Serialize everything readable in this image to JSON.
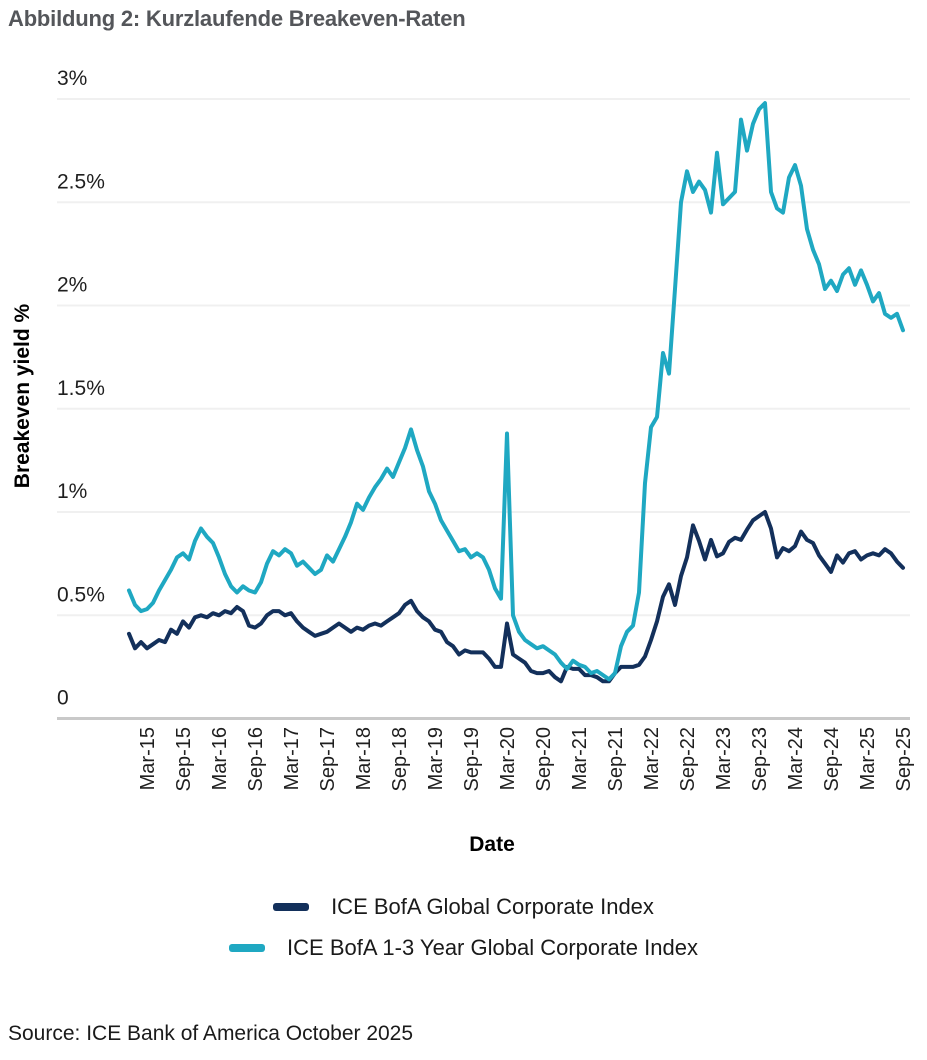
{
  "title": "Abbildung 2: Kurzlaufende Breakeven-Raten",
  "source": "Source: ICE Bank of America October 2025",
  "chart_data": {
    "type": "line",
    "title": "Abbildung 2: Kurzlaufende Breakeven-Raten",
    "xlabel": "Date",
    "ylabel": "Breakeven yield %",
    "ylim": [
      0,
      3
    ],
    "grid": "horizontal-only",
    "legend_position": "bottom",
    "x_start": "2014-12",
    "x_end": "2025-09",
    "x_frequency": "monthly",
    "ytick_labels": [
      "3%",
      "2.5%",
      "2%",
      "1.5%",
      "1%",
      "0.5%",
      "0"
    ],
    "ytick_values": [
      3,
      2.5,
      2,
      1.5,
      1,
      0.5,
      0
    ],
    "xtick_labels": [
      "Mar-15",
      "Sep-15",
      "Mar-16",
      "Sep-16",
      "Mar-17",
      "Sep-17",
      "Mar-18",
      "Sep-18",
      "Mar-19",
      "Sep-19",
      "Mar-20",
      "Sep-20",
      "Mar-21",
      "Sep-21",
      "Mar-22",
      "Sep-22",
      "Mar-23",
      "Sep-23",
      "Mar-24",
      "Sep-24",
      "Mar-25",
      "Sep-25"
    ],
    "colors": {
      "axis_line": "#c9c9c9",
      "gridline": "#f0f0f0",
      "tick_text": "#1f1f1f",
      "title_text": "#54565a"
    },
    "series": [
      {
        "name": "ICE BofA Global Corporate Index",
        "color": "#13305b",
        "values": [
          0.41,
          0.34,
          0.37,
          0.34,
          0.36,
          0.38,
          0.37,
          0.43,
          0.41,
          0.47,
          0.44,
          0.49,
          0.5,
          0.49,
          0.51,
          0.5,
          0.52,
          0.51,
          0.54,
          0.52,
          0.45,
          0.44,
          0.46,
          0.5,
          0.52,
          0.52,
          0.5,
          0.51,
          0.47,
          0.44,
          0.42,
          0.4,
          0.41,
          0.42,
          0.44,
          0.46,
          0.44,
          0.42,
          0.44,
          0.43,
          0.45,
          0.46,
          0.45,
          0.47,
          0.49,
          0.51,
          0.55,
          0.57,
          0.52,
          0.49,
          0.47,
          0.43,
          0.42,
          0.37,
          0.35,
          0.31,
          0.33,
          0.32,
          0.32,
          0.32,
          0.29,
          0.25,
          0.25,
          0.46,
          0.31,
          0.29,
          0.27,
          0.23,
          0.22,
          0.22,
          0.23,
          0.2,
          0.18,
          0.25,
          0.24,
          0.24,
          0.21,
          0.21,
          0.2,
          0.18,
          0.18,
          0.22,
          0.25,
          0.25,
          0.25,
          0.26,
          0.3,
          0.38,
          0.47,
          0.59,
          0.65,
          0.55,
          0.69,
          0.78,
          0.935,
          0.86,
          0.77,
          0.865,
          0.785,
          0.8,
          0.855,
          0.875,
          0.865,
          0.915,
          0.96,
          0.98,
          1.0,
          0.92,
          0.78,
          0.825,
          0.81,
          0.835,
          0.905,
          0.865,
          0.85,
          0.79,
          0.75,
          0.71,
          0.79,
          0.755,
          0.8,
          0.81,
          0.77,
          0.79,
          0.8,
          0.79,
          0.82,
          0.8,
          0.76,
          0.73
        ]
      },
      {
        "name": "ICE BofA 1-3 Year Global Corporate Index",
        "color": "#1fa8c2",
        "values": [
          0.62,
          0.55,
          0.52,
          0.53,
          0.56,
          0.62,
          0.67,
          0.72,
          0.78,
          0.8,
          0.77,
          0.86,
          0.92,
          0.88,
          0.85,
          0.78,
          0.7,
          0.64,
          0.61,
          0.64,
          0.62,
          0.61,
          0.66,
          0.75,
          0.81,
          0.79,
          0.82,
          0.8,
          0.74,
          0.76,
          0.73,
          0.7,
          0.72,
          0.79,
          0.76,
          0.82,
          0.88,
          0.95,
          1.04,
          1.01,
          1.07,
          1.12,
          1.16,
          1.21,
          1.17,
          1.24,
          1.31,
          1.4,
          1.3,
          1.22,
          1.1,
          1.04,
          0.96,
          0.91,
          0.86,
          0.81,
          0.82,
          0.78,
          0.8,
          0.78,
          0.72,
          0.63,
          0.58,
          1.38,
          0.5,
          0.42,
          0.38,
          0.36,
          0.34,
          0.35,
          0.33,
          0.31,
          0.27,
          0.24,
          0.28,
          0.26,
          0.25,
          0.22,
          0.23,
          0.21,
          0.19,
          0.22,
          0.35,
          0.42,
          0.45,
          0.61,
          1.14,
          1.41,
          1.46,
          1.77,
          1.67,
          2.08,
          2.5,
          2.65,
          2.55,
          2.6,
          2.56,
          2.45,
          2.74,
          2.49,
          2.52,
          2.55,
          2.9,
          2.75,
          2.88,
          2.95,
          2.98,
          2.55,
          2.47,
          2.45,
          2.62,
          2.68,
          2.58,
          2.37,
          2.27,
          2.2,
          2.08,
          2.12,
          2.07,
          2.15,
          2.18,
          2.1,
          2.17,
          2.1,
          2.02,
          2.06,
          1.96,
          1.94,
          1.96,
          1.88
        ]
      }
    ]
  }
}
